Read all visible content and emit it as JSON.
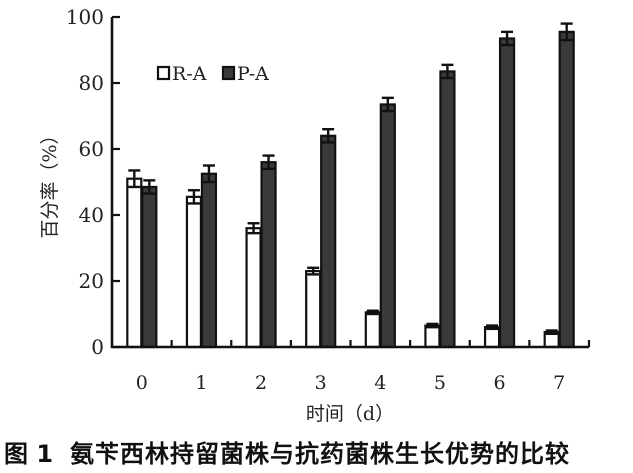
{
  "chart_data": {
    "type": "bar",
    "title": "",
    "xlabel": "时间（d）",
    "ylabel": "百分率（%）",
    "ylim": [
      0,
      100
    ],
    "yticks": [
      0,
      20,
      40,
      60,
      80,
      100
    ],
    "categories": [
      "0",
      "1",
      "2",
      "3",
      "4",
      "5",
      "6",
      "7"
    ],
    "series": [
      {
        "name": "R-A",
        "fill": "#ffffff",
        "stroke": "#111111",
        "values": [
          51,
          45.5,
          36,
          23,
          10.5,
          6.5,
          6,
          4.5
        ],
        "errors": [
          2.5,
          2,
          1.5,
          1,
          0.5,
          0.5,
          0.5,
          0.5
        ]
      },
      {
        "name": "P-A",
        "fill": "#3a3a3a",
        "stroke": "#111111",
        "values": [
          48.5,
          52.5,
          56,
          64,
          73.5,
          83.5,
          93.5,
          95.5
        ],
        "errors": [
          2,
          2.5,
          2,
          2,
          2,
          2,
          2,
          2.5
        ]
      }
    ],
    "legend": {
      "position": "upper-left",
      "entries": [
        "R-A",
        "P-A"
      ]
    },
    "grid": false
  },
  "caption": {
    "figure_number": "图 1",
    "title": "氨苄西林持留菌株与抗药菌株生长优势的比较"
  }
}
